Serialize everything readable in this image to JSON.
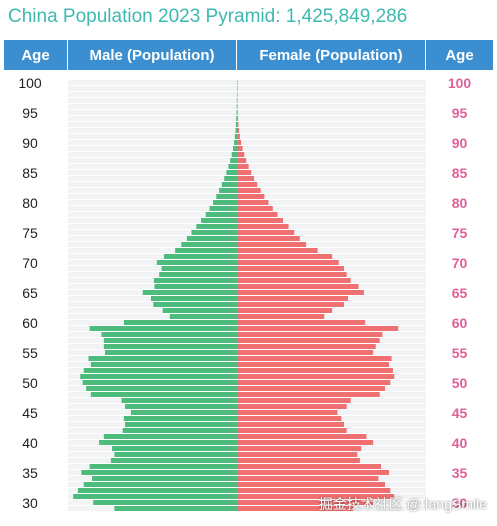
{
  "title": "China Population 2023 Pyramid: 1,425,849,286",
  "headers": {
    "age_left": "Age",
    "male": "Male (Population)",
    "female": "Female (Population)",
    "age_right": "Age"
  },
  "watermark": "掘金技术社区 @ fangSmile",
  "colors": {
    "male": "#4dbb7b",
    "female": "#ef7070",
    "header": "#3b8fd0",
    "title": "#3db9b1",
    "right_age": "#e0609a"
  },
  "chart_data": {
    "type": "bar",
    "orientation": "horizontal-pyramid",
    "age_ticks": [
      100,
      95,
      90,
      85,
      80,
      75,
      70,
      65,
      60,
      55,
      50,
      45,
      40,
      35,
      30
    ],
    "ages": [
      100,
      99,
      98,
      97,
      96,
      95,
      94,
      93,
      92,
      91,
      90,
      89,
      88,
      87,
      86,
      85,
      84,
      83,
      82,
      81,
      80,
      79,
      78,
      77,
      76,
      75,
      74,
      73,
      72,
      71,
      70,
      69,
      68,
      67,
      66,
      65,
      64,
      63,
      62,
      61,
      60,
      59,
      58,
      57,
      56,
      55,
      54,
      53,
      52,
      51,
      50,
      49,
      48,
      47,
      46,
      45,
      44,
      43,
      42,
      41,
      40,
      39,
      38,
      37,
      36,
      35,
      34,
      33,
      32,
      31,
      30,
      29
    ],
    "x_max": 14000000,
    "series": [
      {
        "name": "Male",
        "values": [
          2000,
          4000,
          8000,
          15000,
          25000,
          40000,
          60000,
          90000,
          130000,
          180000,
          250000,
          340000,
          450000,
          580000,
          730000,
          900000,
          1080000,
          1290000,
          1520000,
          1760000,
          2030000,
          2330000,
          2650000,
          3050000,
          3450000,
          3860000,
          4250000,
          4720000,
          5250000,
          6200000,
          6800000,
          6400000,
          6600000,
          7050000,
          7000000,
          8000000,
          7300000,
          7100000,
          6300000,
          5700000,
          9600000,
          12500000,
          11500000,
          11300000,
          11300000,
          11200000,
          12600000,
          12400000,
          13000000,
          13300000,
          13100000,
          12800000,
          12400000,
          9800000,
          9500000,
          9000000,
          9600000,
          9500000,
          9700000,
          11300000,
          11700000,
          10600000,
          10400000,
          10700000,
          12500000,
          13200000,
          12300000,
          13000000,
          13500000,
          13900000,
          12200000,
          10400000
        ]
      },
      {
        "name": "Female",
        "values": [
          3000,
          6000,
          11000,
          20000,
          32000,
          50000,
          75000,
          110000,
          160000,
          220000,
          310000,
          420000,
          550000,
          700000,
          880000,
          1080000,
          1290000,
          1530000,
          1790000,
          2070000,
          2380000,
          2710000,
          3060000,
          3480000,
          3900000,
          4330000,
          4750000,
          5230000,
          6100000,
          7200000,
          7700000,
          8100000,
          8300000,
          8600000,
          9200000,
          9600000,
          8400000,
          8100000,
          7200000,
          6600000,
          9700000,
          12200000,
          11000000,
          10800000,
          10500000,
          10300000,
          11700000,
          11500000,
          11800000,
          11900000,
          11600000,
          11200000,
          10800000,
          8600000,
          8300000,
          7600000,
          7900000,
          8100000,
          8300000,
          9800000,
          10300000,
          9400000,
          9100000,
          9300000,
          10900000,
          11500000,
          10700000,
          11200000,
          11600000,
          11900000,
          10300000,
          8800000
        ]
      }
    ]
  }
}
